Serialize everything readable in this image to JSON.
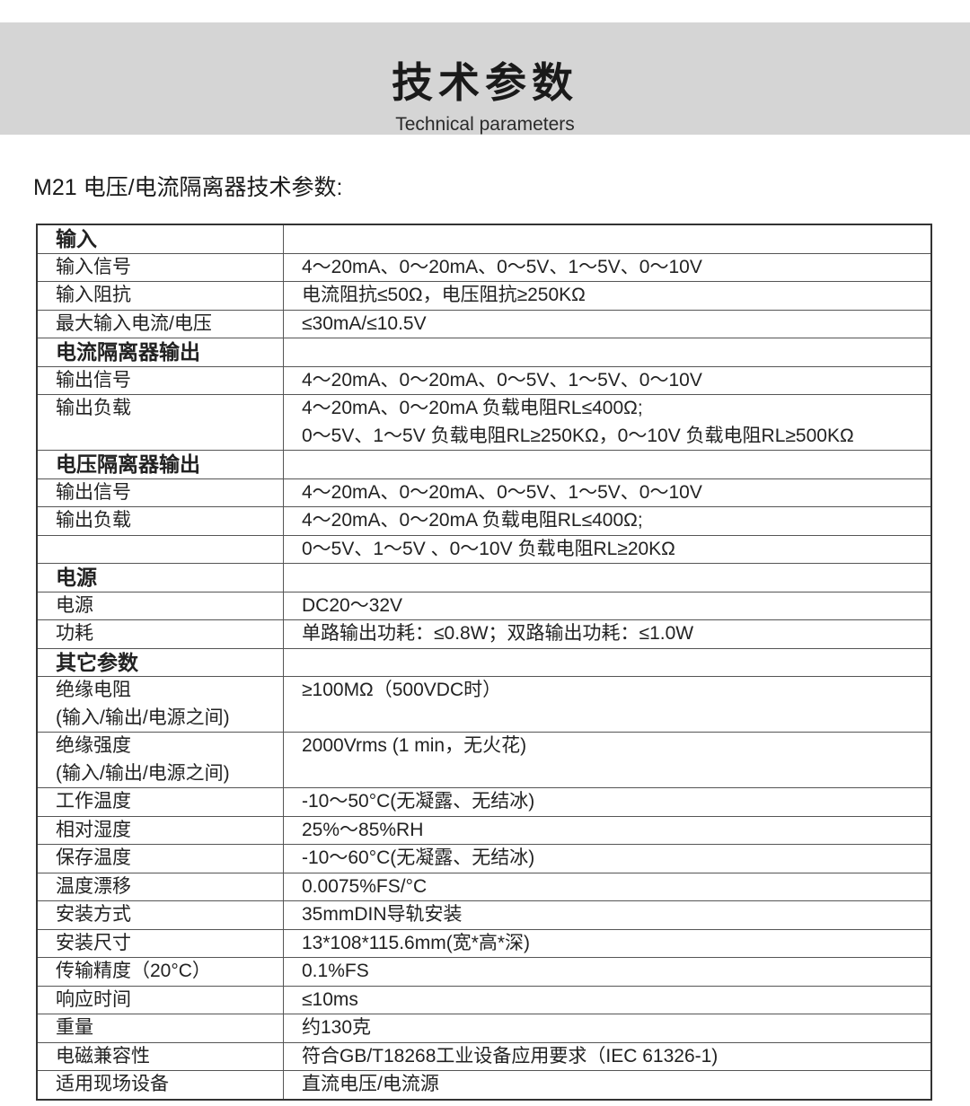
{
  "banner": {
    "title": "技术参数",
    "subtitle": "Technical parameters"
  },
  "heading": "M21 电压/电流隔离器技术参数:",
  "rows": [
    {
      "label": "输入",
      "value": "",
      "section": true
    },
    {
      "label": "输入信号",
      "value": "4～20mA、0～20mA、0～5V、1～5V、0～10V"
    },
    {
      "label": "输入阻抗",
      "value": "电流阻抗≤50Ω，电压阻抗≥250KΩ"
    },
    {
      "label": "最大输入电流/电压",
      "value": "≤30mA/≤10.5V"
    },
    {
      "label": "电流隔离器输出",
      "value": "",
      "section": true
    },
    {
      "label": "输出信号",
      "value": "4～20mA、0～20mA、0～5V、1～5V、0～10V"
    },
    {
      "label": "输出负载",
      "value": "4～20mA、0～20mA 负载电阻RL≤400Ω;\n0～5V、1～5V 负载电阻RL≥250KΩ，0～10V 负载电阻RL≥500KΩ"
    },
    {
      "label": "电压隔离器输出",
      "value": "",
      "section": true
    },
    {
      "label": "输出信号",
      "value": "4～20mA、0～20mA、0～5V、1～5V、0～10V"
    },
    {
      "label": "输出负载",
      "value": "4～20mA、0～20mA 负载电阻RL≤400Ω;"
    },
    {
      "label": "",
      "value": "0～5V、1～5V 、0～10V 负载电阻RL≥20KΩ"
    },
    {
      "label": "电源",
      "value": "",
      "section": true
    },
    {
      "label": "电源",
      "value": "DC20～32V"
    },
    {
      "label": "功耗",
      "value": "单路输出功耗：≤0.8W；双路输出功耗：≤1.0W"
    },
    {
      "label": "其它参数",
      "value": "",
      "section": true
    },
    {
      "label": "绝缘电阻\n(输入/输出/电源之间)",
      "value": "≥100MΩ（500VDC时）"
    },
    {
      "label": "绝缘强度\n(输入/输出/电源之间)",
      "value": "2000Vrms (1 min，无火花)"
    },
    {
      "label": "工作温度",
      "value": "-10～50°C(无凝露、无结冰)"
    },
    {
      "label": "相对湿度",
      "value": "25%～85%RH"
    },
    {
      "label": "保存温度",
      "value": "-10～60°C(无凝露、无结冰)"
    },
    {
      "label": "温度漂移",
      "value": "0.0075%FS/°C"
    },
    {
      "label": "安装方式",
      "value": "35mmDIN导轨安装"
    },
    {
      "label": "安装尺寸",
      "value": "13*108*115.6mm(宽*高*深)"
    },
    {
      "label": "传输精度（20°C）",
      "value": "0.1%FS"
    },
    {
      "label": "响应时间",
      "value": "≤10ms"
    },
    {
      "label": "重量",
      "value": "约130克"
    },
    {
      "label": "电磁兼容性",
      "value": "符合GB/T18268工业设备应用要求（IEC 61326-1)"
    },
    {
      "label": "适用现场设备",
      "value": "直流电压/电流源"
    }
  ]
}
